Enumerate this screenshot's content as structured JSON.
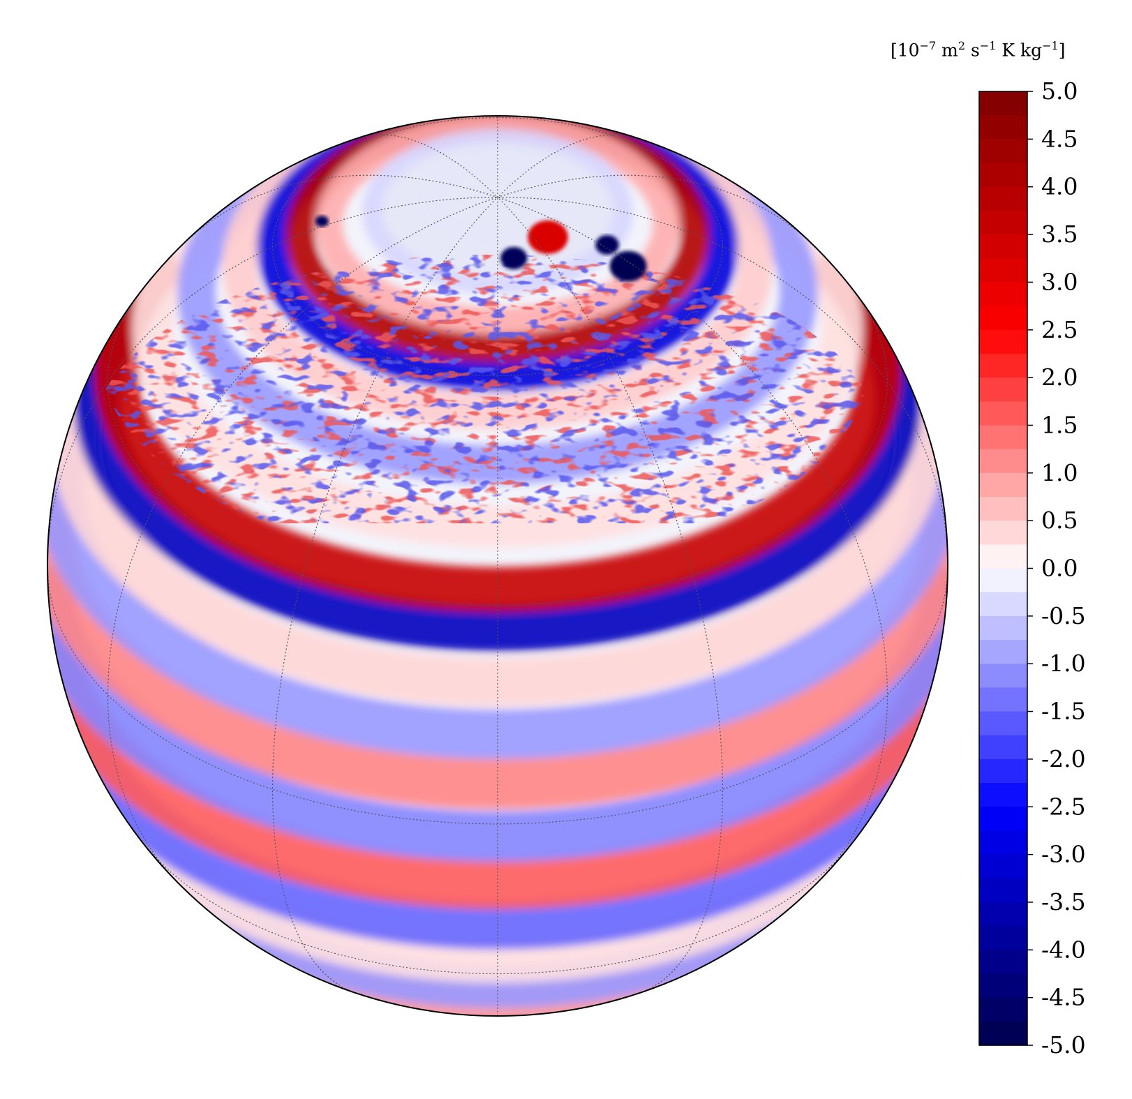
{
  "colorbar": {
    "unit_parts": [
      "[10",
      "−7",
      " m",
      "2",
      " s",
      "−1",
      " K kg",
      "−1",
      "]"
    ],
    "ticks": [
      "5.0",
      "4.5",
      "4.0",
      "3.5",
      "3.0",
      "2.5",
      "2.0",
      "1.5",
      "1.0",
      "0.5",
      "0.0",
      "-0.5",
      "-1.0",
      "-1.5",
      "-2.0",
      "-2.5",
      "-3.0",
      "-3.5",
      "-4.0",
      "-4.5",
      "-5.0"
    ],
    "vmin": -5.0,
    "vmax": 5.0,
    "colormap": "seismic",
    "levels": 40
  },
  "map": {
    "projection": "orthographic",
    "view": "north-pole tilted toward viewer",
    "field": "zonal banded anomaly field, red positive / blue negative",
    "gridlines": "dotted graticule",
    "features": [
      "polar vortices near the pole (dark blue spots)",
      "strong red ring at high latitude",
      "alternating red/blue zonal jets"
    ],
    "colors": {
      "positive_max": "#7f0000",
      "positive": "#ff0000",
      "zero": "#f4f4fa",
      "negative": "#0000ff",
      "negative_max": "#00004c"
    }
  }
}
